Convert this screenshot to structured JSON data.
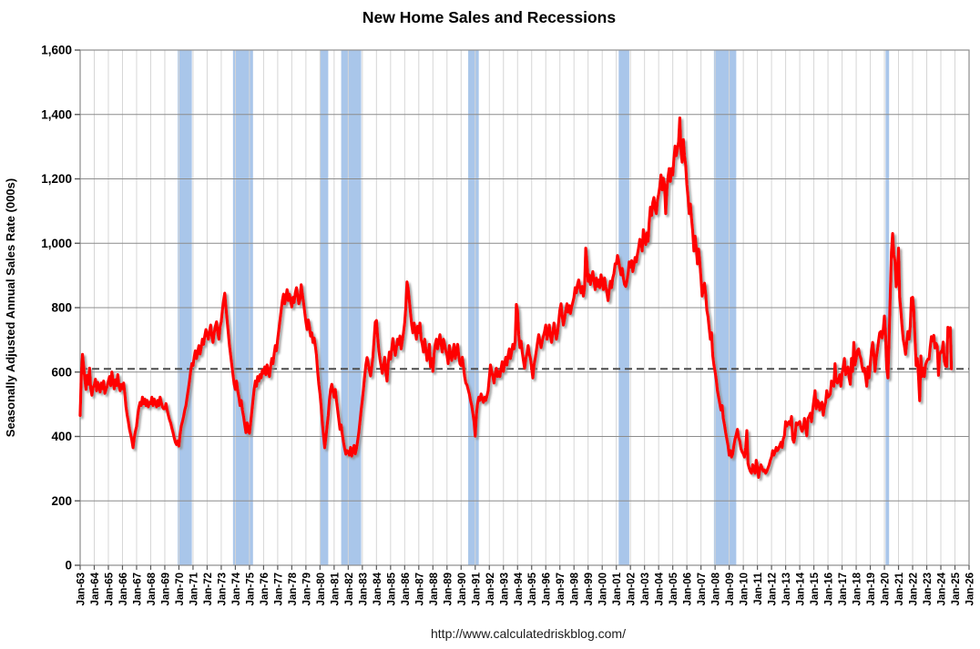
{
  "title": "New Home Sales and Recessions",
  "footer": {
    "url": "http://www.calculatedriskblog.com/"
  },
  "chart_data": {
    "type": "line",
    "title": "New Home Sales and Recessions",
    "xlabel": "",
    "ylabel": "Seasonally Adjusted Annual Sales Rate (000s)",
    "ylim": [
      0,
      1600
    ],
    "ytick_interval": 200,
    "ytick_labels": [
      "0",
      "200",
      "400",
      "600",
      "800",
      "1,000",
      "1,200",
      "1,400",
      "1,600"
    ],
    "x_start_year": 1963,
    "x_end_year": 2026,
    "xtick_labels": [
      "Jan-63",
      "Jan-64",
      "Jan-65",
      "Jan-66",
      "Jan-67",
      "Jan-68",
      "Jan-69",
      "Jan-70",
      "Jan-71",
      "Jan-72",
      "Jan-73",
      "Jan-74",
      "Jan-75",
      "Jan-76",
      "Jan-77",
      "Jan-78",
      "Jan-79",
      "Jan-80",
      "Jan-81",
      "Jan-82",
      "Jan-83",
      "Jan-84",
      "Jan-85",
      "Jan-86",
      "Jan-87",
      "Jan-88",
      "Jan-89",
      "Jan-90",
      "Jan-91",
      "Jan-92",
      "Jan-93",
      "Jan-94",
      "Jan-95",
      "Jan-96",
      "Jan-97",
      "Jan-98",
      "Jan-99",
      "Jan-00",
      "Jan-01",
      "Jan-02",
      "Jan-03",
      "Jan-04",
      "Jan-05",
      "Jan-06",
      "Jan-07",
      "Jan-08",
      "Jan-09",
      "Jan-10",
      "Jan-11",
      "Jan-12",
      "Jan-13",
      "Jan-14",
      "Jan-15",
      "Jan-16",
      "Jan-17",
      "Jan-18",
      "Jan-19",
      "Jan-20",
      "Jan-21",
      "Jan-22",
      "Jan-23",
      "Jan-24",
      "Jan-25",
      "Jan-26"
    ],
    "grid": true,
    "legend": "none",
    "reference_line": {
      "value": 610,
      "style": "dashed"
    },
    "recession_bands": {
      "ranges": [
        [
          1969.917,
          1970.917
        ],
        [
          1973.833,
          1975.25
        ],
        [
          1980.0,
          1980.583
        ],
        [
          1981.5,
          1982.917
        ],
        [
          1990.5,
          1991.25
        ],
        [
          2001.167,
          2001.917
        ],
        [
          2007.917,
          2009.5
        ],
        [
          2020.083,
          2020.333
        ]
      ]
    },
    "series": [
      {
        "name": "New Home Sales (SAAR, 000s)",
        "start": "Jan-1963",
        "end": "Oct-2024",
        "frequency": "monthly",
        "values": [
          465,
          590,
          655,
          618,
          575,
          546,
          590,
          562,
          612,
          548,
          528,
          552,
          560,
          578,
          542,
          568,
          556,
          538,
          566,
          548,
          572,
          534,
          546,
          556,
          572,
          586,
          558,
          600,
          572,
          548,
          576,
          558,
          592,
          558,
          542,
          562,
          548,
          566,
          532,
          492,
          466,
          446,
          422,
          406,
          388,
          365,
          396,
          416,
          432,
          466,
          490,
          506,
          496,
          522,
          502,
          516,
          496,
          512,
          492,
          506,
          502,
          522,
          496,
          516,
          506,
          492,
          512,
          496,
          522,
          506,
          492,
          486,
          486,
          502,
          482,
          466,
          452,
          442,
          426,
          412,
          396,
          382,
          375,
          386,
          370,
          406,
          432,
          446,
          462,
          482,
          496,
          522,
          546,
          572,
          602,
          626,
          620,
          646,
          666,
          642,
          662,
          682,
          656,
          676,
          702,
          686,
          712,
          732,
          716,
          702,
          726,
          746,
          712,
          692,
          722,
          742,
          756,
          722,
          702,
          740,
          756,
          792,
          822,
          845,
          800,
          760,
          722,
          682,
          652,
          622,
          592,
          562,
          546,
          572,
          542,
          522,
          496,
          512,
          482,
          462,
          436,
          412,
          442,
          416,
          410,
          442,
          476,
          512,
          546,
          572,
          556,
          586,
          572,
          592,
          582,
          606,
          596,
          616,
          592,
          622,
          602,
          586,
          616,
          642,
          626,
          656,
          682,
          666,
          702,
          732,
          762,
          792,
          822,
          842,
          812,
          832,
          856,
          822,
          842,
          822,
          802,
          832,
          816,
          846,
          862,
          836,
          812,
          826,
          871,
          842,
          816,
          786,
          756,
          732,
          762,
          742,
          712,
          722,
          692,
          706,
          682,
          652,
          602,
          562,
          532,
          492,
          442,
          402,
          365,
          396,
          432,
          466,
          512,
          546,
          562,
          542,
          522,
          546,
          512,
          482,
          452,
          422,
          436,
          406,
          382,
          362,
          345,
          356,
          352,
          342,
          366,
          339,
          356,
          372,
          346,
          362,
          386,
          412,
          446,
          482,
          512,
          548,
          586,
          622,
          645,
          628,
          605,
          588,
          615,
          648,
          700,
          755,
          760,
          710,
          668,
          640,
          618,
          596,
          620,
          646,
          600,
          572,
          628,
          662,
          640,
          672,
          704,
          676,
          652,
          676,
          702,
          686,
          712,
          672,
          696,
          722,
          752,
          802,
          880,
          858,
          820,
          782,
          746,
          722,
          752,
          730,
          702,
          742,
          722,
          752,
          702,
          686,
          662,
          702,
          672,
          636,
          652,
          686,
          616,
          642,
          602,
          656,
          686,
          702,
          672,
          696,
          716,
          686,
          662,
          702,
          686,
          666,
          652,
          626,
          682,
          656,
          636,
          662,
          686,
          642,
          662,
          686,
          652,
          626,
          620,
          646,
          616,
          586,
          566,
          560,
          546,
          532,
          512,
          496,
          472,
          446,
          401,
          466,
          502,
          522,
          512,
          532,
          516,
          506,
          522,
          512,
          526,
          542,
          582,
          622,
          602,
          586,
          566,
          596,
          612,
          586,
          602,
          586,
          612,
          632,
          602,
          626,
          646,
          622,
          652,
          672,
          642,
          662,
          686,
          672,
          696,
          810,
          790,
          716,
          676,
          696,
          662,
          636,
          612,
          642,
          656,
          682,
          656,
          642,
          612,
          582,
          622,
          642,
          666,
          692,
          716,
          696,
          676,
          696,
          712,
          726,
          746,
          702,
          722,
          746,
          712,
          692,
          722,
          752,
          726,
          702,
          722,
          756,
          792,
          812,
          772,
          746,
          766,
          792,
          812,
          786,
          806,
          782,
          802,
          816,
          832,
          862,
          846,
          872,
          886,
          862,
          846,
          866,
          836,
          862,
          985,
          942,
          882,
          902,
          872,
          892,
          912,
          882,
          856,
          892,
          866,
          886,
          862,
          902,
          882,
          856,
          892,
          866,
          846,
          822,
          856,
          882,
          862,
          892,
          906,
          936,
          936,
          962,
          946,
          922,
          902,
          922,
          892,
          872,
          866,
          882,
          906,
          942,
          926,
          946,
          912,
          932,
          956,
          942,
          966,
          986,
          1012,
          1006,
          976,
          1042,
          1016,
          996,
          1032,
          1006,
          1066,
          1112,
          1086,
          1126,
          1142,
          1106,
          1092,
          1132,
          1152,
          1176,
          1212,
          1166,
          1202,
          1182,
          1092,
          1166,
          1206,
          1232,
          1192,
          1232,
          1212,
          1262,
          1302,
          1272,
          1292,
          1316,
          1389,
          1286,
          1252,
          1322,
          1272,
          1242,
          1182,
          1142,
          1092,
          1122,
          1076,
          1036,
          976,
          1022,
          986,
          936,
          982,
          942,
          892,
          836,
          856,
          876,
          842,
          792,
          772,
          736,
          702,
          722,
          652,
          622,
          602,
          576,
          542,
          522,
          502,
          482,
          496,
          456,
          436,
          412,
          392,
          372,
          342,
          356,
          336,
          346,
          372,
          392,
          406,
          422,
          396,
          386,
          362,
          352,
          346,
          336,
          366,
          418,
          316,
          302,
          292,
          286,
          312,
          296,
          286,
          326,
          306,
          273,
          296,
          312,
          302,
          292,
          296,
          286,
          292,
          302,
          312,
          326,
          336,
          356,
          342,
          352,
          366,
          356,
          362,
          372,
          382,
          366,
          392,
          402,
          446,
          432,
          442,
          446,
          436,
          462,
          392,
          382,
          402,
          442,
          436,
          442,
          446,
          426,
          416,
          426,
          456,
          432,
          402,
          456,
          462,
          472,
          446,
          482,
          512,
          542,
          486,
          512,
          506,
          482,
          502,
          506,
          466,
          492,
          506,
          542,
          522,
          526,
          532,
          572,
          562,
          556,
          626,
          572,
          566,
          576,
          592,
          556,
          596,
          616,
          642,
          592,
          606,
          616,
          582,
          562,
          642,
          602,
          692,
          622,
          642,
          666,
          672,
          652,
          642,
          616,
          602,
          612,
          586,
          556,
          616,
          582,
          626,
          666,
          692,
          656,
          602,
          642,
          666,
          696,
          722,
          726,
          706,
          730,
          774,
          716,
          612,
          582,
          704,
          840,
          972,
          1030,
          965,
          945,
          865,
          885,
          985,
          832,
          790,
          742,
          702,
          682,
          655,
          692,
          726,
          702,
          742,
          830,
          832,
          792,
          706,
          620,
          642,
          586,
          511,
          650,
          586,
          612,
          586,
          622,
          633,
          640,
          640,
          679,
          710,
          697,
          714,
          675,
          689,
          679,
          590,
          654,
          664,
          662,
          693,
          634,
          619,
          617,
          739,
          716,
          738,
          610
        ]
      }
    ],
    "colors": {
      "line": "#FF0000",
      "recession_band": "#A9C6EA",
      "grid_vertical": "#D6D6D6",
      "grid_horizontal": "#8C8C8C",
      "plot_border": "#8C8C8C",
      "reference_line": "#4D4D4D",
      "tick": "#595959",
      "background": "#FFFFFF",
      "text": "#000000"
    }
  }
}
